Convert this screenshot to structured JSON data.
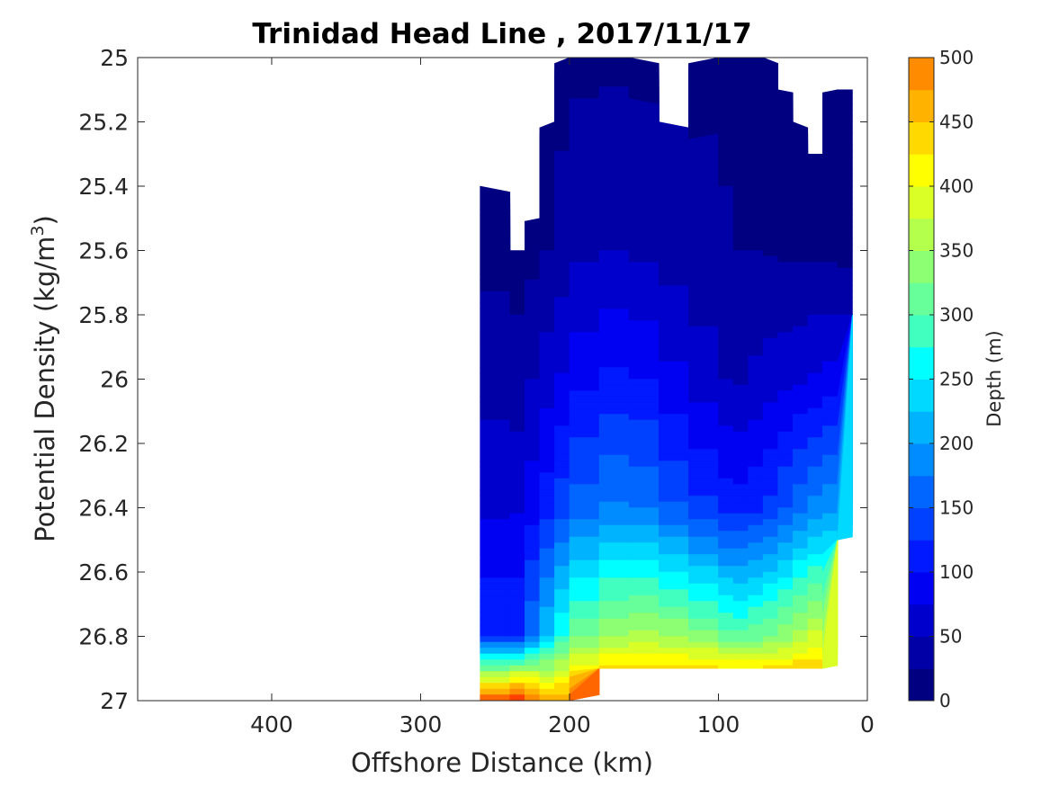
{
  "chart_data": {
    "type": "heatmap",
    "subtype": "filled-contour",
    "title": "Trinidad Head Line , 2017/11/17",
    "xlabel": "Offshore Distance (km)",
    "ylabel_main": "Potential Density (kg/m",
    "ylabel_sup": "3",
    "ylabel_close": ")",
    "xlim": [
      490,
      0
    ],
    "ylim": [
      25,
      27
    ],
    "x_reversed": true,
    "y_reversed": true,
    "x_ticks": [
      400,
      300,
      200,
      100,
      0
    ],
    "x_tick_labels": [
      "400",
      "300",
      "200",
      "100",
      "0"
    ],
    "y_ticks": [
      25,
      25.2,
      25.4,
      25.6,
      25.8,
      26,
      26.2,
      26.4,
      26.6,
      26.8,
      27
    ],
    "y_tick_labels": [
      "25",
      "25.2",
      "25.4",
      "25.6",
      "25.8",
      "26",
      "26.2",
      "26.4",
      "26.6",
      "26.8",
      "27"
    ],
    "grid": false,
    "colorbar": {
      "label": "Depth (m)",
      "min": 0,
      "max": 500,
      "step": 25,
      "ticks": [
        0,
        50,
        100,
        150,
        200,
        250,
        300,
        350,
        400,
        450,
        500
      ],
      "tick_labels": [
        "0",
        "50",
        "100",
        "150",
        "200",
        "250",
        "300",
        "350",
        "400",
        "450",
        "500"
      ],
      "colormap": "jet",
      "colors": [
        "#000080",
        "#0000a6",
        "#0000cc",
        "#0000f2",
        "#0019ff",
        "#0040ff",
        "#0066ff",
        "#008cff",
        "#00b3ff",
        "#00d9ff",
        "#00ffff",
        "#40ffbf",
        "#66ff99",
        "#8cff73",
        "#b3ff4c",
        "#d9ff26",
        "#ffff00",
        "#ffd900",
        "#ffb300",
        "#ff8c00",
        "#ff6600",
        "#ff4000",
        "#ff1900",
        "#f20000",
        "#cc0000",
        "#a60000",
        "#800000"
      ]
    },
    "stations_x": [
      260,
      240,
      230,
      220,
      210,
      200,
      180,
      160,
      140,
      120,
      100,
      90,
      80,
      70,
      60,
      50,
      40,
      30,
      20,
      10
    ],
    "density_surface_depth_m": {
      "25.0": [
        null,
        null,
        null,
        null,
        null,
        20,
        20,
        20,
        20,
        20,
        20,
        20,
        20,
        20,
        null,
        null,
        null,
        null,
        null,
        null
      ],
      "25.6": [
        20,
        15,
        15,
        20,
        30,
        40,
        50,
        50,
        40,
        35,
        30,
        25,
        25,
        25,
        22,
        20,
        20,
        20,
        20,
        15
      ],
      "26.0": [
        50,
        30,
        40,
        60,
        70,
        85,
        100,
        110,
        90,
        70,
        55,
        45,
        50,
        60,
        65,
        70,
        75,
        80,
        85,
        80
      ],
      "26.4": [
        75,
        65,
        80,
        100,
        125,
        150,
        175,
        185,
        165,
        140,
        120,
        110,
        115,
        125,
        140,
        160,
        175,
        190,
        200,
        200
      ],
      "26.8": [
        150,
        100,
        150,
        200,
        250,
        300,
        340,
        360,
        355,
        340,
        320,
        300,
        310,
        320,
        330,
        350,
        370,
        390,
        null,
        null
      ],
      "26.95": [
        400,
        450,
        440,
        420,
        400,
        450,
        480,
        480,
        480,
        480,
        480,
        480,
        480,
        480,
        480,
        480,
        480,
        480,
        null,
        null
      ]
    },
    "boundary_top_density": [
      25.4,
      25.6,
      25.6,
      25.5,
      25.2,
      25.0,
      25.0,
      25.0,
      25.2,
      25.3,
      25.0,
      25.0,
      25.0,
      25.0,
      25.1,
      25.2,
      25.3,
      25.3,
      25.1,
      25.1
    ],
    "boundary_bottom_density": [
      27.0,
      27.0,
      27.0,
      27.0,
      27.0,
      27.0,
      26.9,
      26.9,
      26.9,
      26.9,
      26.9,
      26.9,
      26.9,
      26.9,
      26.9,
      26.9,
      26.9,
      26.9,
      26.5,
      25.8
    ]
  }
}
